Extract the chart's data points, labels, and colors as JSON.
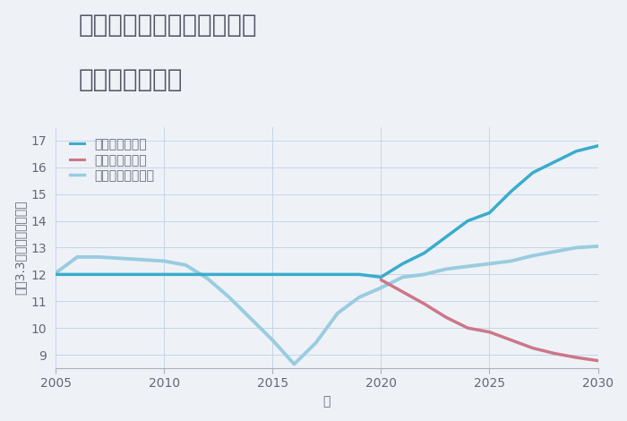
{
  "title_line1": "兵庫県丹波市春日町平松の",
  "title_line2": "土地の価格推移",
  "xlabel": "年",
  "ylabel": "坪（3.3㎡）単価（万円）",
  "background_color": "#eef2f7",
  "plot_background": "#eef2f7",
  "grid_color": "#c5d5e8",
  "xlim": [
    2005,
    2030
  ],
  "ylim": [
    8.5,
    17.5
  ],
  "yticks": [
    9,
    10,
    11,
    12,
    13,
    14,
    15,
    16,
    17
  ],
  "xticks": [
    2005,
    2010,
    2015,
    2020,
    2025,
    2030
  ],
  "good_scenario": {
    "x": [
      2005,
      2006,
      2007,
      2008,
      2009,
      2010,
      2011,
      2012,
      2013,
      2014,
      2015,
      2016,
      2017,
      2018,
      2019,
      2020,
      2021,
      2022,
      2023,
      2024,
      2025,
      2026,
      2027,
      2028,
      2029,
      2030
    ],
    "y": [
      12.0,
      12.0,
      12.0,
      12.0,
      12.0,
      12.0,
      12.0,
      12.0,
      12.0,
      12.0,
      12.0,
      12.0,
      12.0,
      12.0,
      12.0,
      11.9,
      12.4,
      12.8,
      13.4,
      14.0,
      14.3,
      15.1,
      15.8,
      16.2,
      16.6,
      16.8
    ],
    "color": "#3aaccc",
    "label": "グッドシナリオ",
    "linewidth": 2.5
  },
  "bad_scenario": {
    "x": [
      2020,
      2021,
      2022,
      2023,
      2024,
      2025,
      2026,
      2027,
      2028,
      2029,
      2030
    ],
    "y": [
      11.8,
      11.35,
      10.9,
      10.4,
      10.0,
      9.85,
      9.55,
      9.25,
      9.05,
      8.9,
      8.78
    ],
    "color": "#cc7788",
    "label": "バッドシナリオ",
    "linewidth": 2.5
  },
  "normal_scenario": {
    "x": [
      2005,
      2006,
      2007,
      2008,
      2009,
      2010,
      2011,
      2012,
      2013,
      2014,
      2015,
      2016,
      2017,
      2018,
      2019,
      2020,
      2021,
      2022,
      2023,
      2024,
      2025,
      2026,
      2027,
      2028,
      2029,
      2030
    ],
    "y": [
      12.05,
      12.65,
      12.65,
      12.6,
      12.55,
      12.5,
      12.35,
      11.85,
      11.15,
      10.35,
      9.55,
      8.65,
      9.45,
      10.55,
      11.15,
      11.5,
      11.9,
      12.0,
      12.2,
      12.3,
      12.4,
      12.5,
      12.7,
      12.85,
      13.0,
      13.05
    ],
    "color": "#99cce0",
    "label": "ノーマルシナリオ",
    "linewidth": 2.8
  },
  "legend_fontsize": 10,
  "title_fontsize": 20,
  "axis_fontsize": 10,
  "title_color": "#555566",
  "label_color": "#666677",
  "tick_color": "#666677"
}
